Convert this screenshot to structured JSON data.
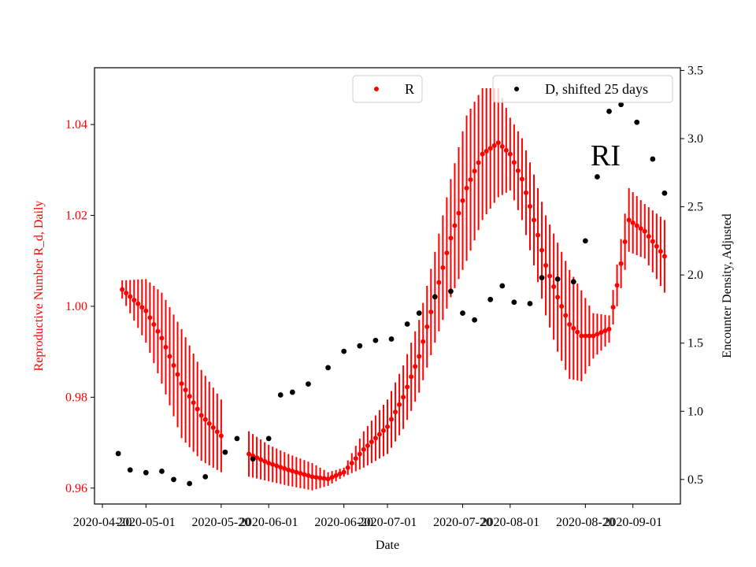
{
  "chart_data": {
    "type": "scatter",
    "xlabel": "Date",
    "ylabel_left": "Reproductive Number R_d, Daily",
    "ylabel_right": "Encounter Density, Adjusted",
    "annotation": "RI",
    "colors": {
      "R": "#ff0000",
      "D": "#000000"
    },
    "x_axis": {
      "ticks": [
        "2020-04-20",
        "2020-05-01",
        "2020-05-20",
        "2020-06-01",
        "2020-06-20",
        "2020-07-01",
        "2020-07-20",
        "2020-08-01",
        "2020-08-20",
        "2020-09-01"
      ],
      "range": [
        "2020-04-18",
        "2020-09-13"
      ]
    },
    "y_left": {
      "range": [
        0.9565,
        1.0525
      ],
      "ticks": [
        0.96,
        0.98,
        1.0,
        1.02,
        1.04
      ],
      "tick_labels": [
        "0.96",
        "0.98",
        "1.00",
        "1.02",
        "1.04"
      ]
    },
    "y_right": {
      "range": [
        0.32,
        3.52
      ],
      "ticks": [
        0.5,
        1.0,
        1.5,
        2.0,
        2.5,
        3.0,
        3.5
      ],
      "tick_labels": [
        "0.5",
        "1.0",
        "1.5",
        "2.0",
        "2.5",
        "3.0",
        "3.5"
      ]
    },
    "legend": {
      "placement": "top-right",
      "R_label": "R",
      "D_label": "D, shifted 25 days"
    },
    "series": [
      {
        "name": "R",
        "axis": "left",
        "style": "points-with-error-bars",
        "points": [
          {
            "x": "2020-04-25",
            "y": 1.0037,
            "err": 0.002
          },
          {
            "x": "2020-05-01",
            "y": 0.999,
            "err": 0.007
          },
          {
            "x": "2020-05-05",
            "y": 0.993,
            "err": 0.01
          },
          {
            "x": "2020-05-10",
            "y": 0.983,
            "err": 0.012
          },
          {
            "x": "2020-05-15",
            "y": 0.976,
            "err": 0.01
          },
          {
            "x": "2020-05-20",
            "y": 0.9715,
            "err": 0.008
          },
          {
            "x": "2020-05-27",
            "y": 0.9675,
            "err": 0.005
          },
          {
            "x": "2020-06-01",
            "y": 0.9655,
            "err": 0.004
          },
          {
            "x": "2020-06-06",
            "y": 0.964,
            "err": 0.0035
          },
          {
            "x": "2020-06-12",
            "y": 0.9625,
            "err": 0.003
          },
          {
            "x": "2020-06-16",
            "y": 0.962,
            "err": 0.0015
          },
          {
            "x": "2020-06-20",
            "y": 0.9635,
            "err": 0.001
          },
          {
            "x": "2020-06-25",
            "y": 0.9685,
            "err": 0.004
          },
          {
            "x": "2020-07-01",
            "y": 0.9735,
            "err": 0.006
          },
          {
            "x": "2020-07-05",
            "y": 0.98,
            "err": 0.007
          },
          {
            "x": "2020-07-09",
            "y": 0.989,
            "err": 0.008
          },
          {
            "x": "2020-07-13",
            "y": 1.002,
            "err": 0.01
          },
          {
            "x": "2020-07-17",
            "y": 1.015,
            "err": 0.013
          },
          {
            "x": "2020-07-21",
            "y": 1.026,
            "err": 0.016
          },
          {
            "x": "2020-07-25",
            "y": 1.0335,
            "err": 0.0145
          },
          {
            "x": "2020-07-29",
            "y": 1.036,
            "err": 0.012
          },
          {
            "x": "2020-08-01",
            "y": 1.0335,
            "err": 0.008
          },
          {
            "x": "2020-08-04",
            "y": 1.028,
            "err": 0.009
          },
          {
            "x": "2020-08-07",
            "y": 1.019,
            "err": 0.01
          },
          {
            "x": "2020-08-10",
            "y": 1.009,
            "err": 0.011
          },
          {
            "x": "2020-08-13",
            "y": 1.002,
            "err": 0.012
          },
          {
            "x": "2020-08-16",
            "y": 0.996,
            "err": 0.012
          },
          {
            "x": "2020-08-19",
            "y": 0.9935,
            "err": 0.01
          },
          {
            "x": "2020-08-22",
            "y": 0.9935,
            "err": 0.005
          },
          {
            "x": "2020-08-26",
            "y": 0.995,
            "err": 0.003
          },
          {
            "x": "2020-08-31",
            "y": 1.019,
            "err": 0.007
          },
          {
            "x": "2020-09-04",
            "y": 1.0165,
            "err": 0.006
          },
          {
            "x": "2020-09-09",
            "y": 1.011,
            "err": 0.008
          }
        ]
      },
      {
        "name": "D, shifted 25 days",
        "axis": "right",
        "style": "points",
        "points": [
          {
            "x": "2020-04-24",
            "y": 0.69
          },
          {
            "x": "2020-04-27",
            "y": 0.57
          },
          {
            "x": "2020-05-01",
            "y": 0.55
          },
          {
            "x": "2020-05-05",
            "y": 0.56
          },
          {
            "x": "2020-05-08",
            "y": 0.5
          },
          {
            "x": "2020-05-12",
            "y": 0.47
          },
          {
            "x": "2020-05-16",
            "y": 0.52
          },
          {
            "x": "2020-05-21",
            "y": 0.7
          },
          {
            "x": "2020-05-24",
            "y": 0.8
          },
          {
            "x": "2020-05-28",
            "y": 0.65
          },
          {
            "x": "2020-06-01",
            "y": 0.8
          },
          {
            "x": "2020-06-04",
            "y": 1.12
          },
          {
            "x": "2020-06-07",
            "y": 1.14
          },
          {
            "x": "2020-06-11",
            "y": 1.2
          },
          {
            "x": "2020-06-16",
            "y": 1.32
          },
          {
            "x": "2020-06-20",
            "y": 1.44
          },
          {
            "x": "2020-06-24",
            "y": 1.48
          },
          {
            "x": "2020-06-28",
            "y": 1.52
          },
          {
            "x": "2020-07-02",
            "y": 1.53
          },
          {
            "x": "2020-07-06",
            "y": 1.64
          },
          {
            "x": "2020-07-09",
            "y": 1.72
          },
          {
            "x": "2020-07-13",
            "y": 1.84
          },
          {
            "x": "2020-07-17",
            "y": 1.88
          },
          {
            "x": "2020-07-20",
            "y": 1.72
          },
          {
            "x": "2020-07-23",
            "y": 1.67
          },
          {
            "x": "2020-07-27",
            "y": 1.82
          },
          {
            "x": "2020-07-30",
            "y": 1.92
          },
          {
            "x": "2020-08-02",
            "y": 1.8
          },
          {
            "x": "2020-08-06",
            "y": 1.79
          },
          {
            "x": "2020-08-09",
            "y": 1.98
          },
          {
            "x": "2020-08-13",
            "y": 1.97
          },
          {
            "x": "2020-08-17",
            "y": 1.95
          },
          {
            "x": "2020-08-20",
            "y": 2.25
          },
          {
            "x": "2020-08-23",
            "y": 2.72
          },
          {
            "x": "2020-08-26",
            "y": 3.2
          },
          {
            "x": "2020-08-29",
            "y": 3.25
          },
          {
            "x": "2020-09-02",
            "y": 3.12
          },
          {
            "x": "2020-09-06",
            "y": 2.85
          },
          {
            "x": "2020-09-09",
            "y": 2.6
          }
        ]
      }
    ]
  }
}
